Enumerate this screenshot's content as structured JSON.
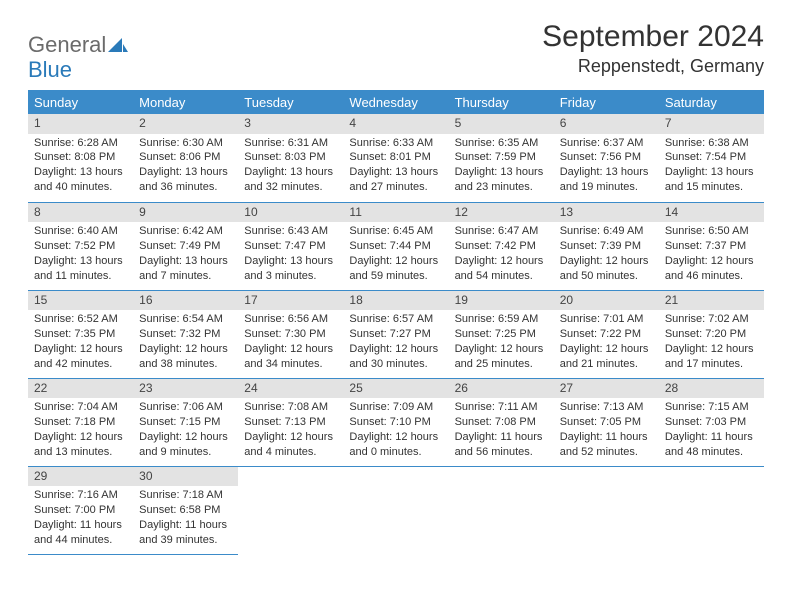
{
  "brand": {
    "word1": "General",
    "word2": "Blue",
    "logo_fill": "#2a7ab9"
  },
  "header": {
    "title": "September 2024",
    "location": "Reppenstedt, Germany"
  },
  "styling": {
    "header_bg": "#3b8bc9",
    "header_text": "#ffffff",
    "daynum_bg": "#e3e3e3",
    "body_text": "#333333",
    "cell_border": "#3b8bc9",
    "page_bg": "#ffffff",
    "title_fontsize": 30,
    "location_fontsize": 18,
    "dayheader_fontsize": 13,
    "cell_fontsize": 11
  },
  "daysOfWeek": [
    "Sunday",
    "Monday",
    "Tuesday",
    "Wednesday",
    "Thursday",
    "Friday",
    "Saturday"
  ],
  "weeks": [
    [
      {
        "n": "1",
        "sr": "Sunrise: 6:28 AM",
        "ss": "Sunset: 8:08 PM",
        "d1": "Daylight: 13 hours",
        "d2": "and 40 minutes."
      },
      {
        "n": "2",
        "sr": "Sunrise: 6:30 AM",
        "ss": "Sunset: 8:06 PM",
        "d1": "Daylight: 13 hours",
        "d2": "and 36 minutes."
      },
      {
        "n": "3",
        "sr": "Sunrise: 6:31 AM",
        "ss": "Sunset: 8:03 PM",
        "d1": "Daylight: 13 hours",
        "d2": "and 32 minutes."
      },
      {
        "n": "4",
        "sr": "Sunrise: 6:33 AM",
        "ss": "Sunset: 8:01 PM",
        "d1": "Daylight: 13 hours",
        "d2": "and 27 minutes."
      },
      {
        "n": "5",
        "sr": "Sunrise: 6:35 AM",
        "ss": "Sunset: 7:59 PM",
        "d1": "Daylight: 13 hours",
        "d2": "and 23 minutes."
      },
      {
        "n": "6",
        "sr": "Sunrise: 6:37 AM",
        "ss": "Sunset: 7:56 PM",
        "d1": "Daylight: 13 hours",
        "d2": "and 19 minutes."
      },
      {
        "n": "7",
        "sr": "Sunrise: 6:38 AM",
        "ss": "Sunset: 7:54 PM",
        "d1": "Daylight: 13 hours",
        "d2": "and 15 minutes."
      }
    ],
    [
      {
        "n": "8",
        "sr": "Sunrise: 6:40 AM",
        "ss": "Sunset: 7:52 PM",
        "d1": "Daylight: 13 hours",
        "d2": "and 11 minutes."
      },
      {
        "n": "9",
        "sr": "Sunrise: 6:42 AM",
        "ss": "Sunset: 7:49 PM",
        "d1": "Daylight: 13 hours",
        "d2": "and 7 minutes."
      },
      {
        "n": "10",
        "sr": "Sunrise: 6:43 AM",
        "ss": "Sunset: 7:47 PM",
        "d1": "Daylight: 13 hours",
        "d2": "and 3 minutes."
      },
      {
        "n": "11",
        "sr": "Sunrise: 6:45 AM",
        "ss": "Sunset: 7:44 PM",
        "d1": "Daylight: 12 hours",
        "d2": "and 59 minutes."
      },
      {
        "n": "12",
        "sr": "Sunrise: 6:47 AM",
        "ss": "Sunset: 7:42 PM",
        "d1": "Daylight: 12 hours",
        "d2": "and 54 minutes."
      },
      {
        "n": "13",
        "sr": "Sunrise: 6:49 AM",
        "ss": "Sunset: 7:39 PM",
        "d1": "Daylight: 12 hours",
        "d2": "and 50 minutes."
      },
      {
        "n": "14",
        "sr": "Sunrise: 6:50 AM",
        "ss": "Sunset: 7:37 PM",
        "d1": "Daylight: 12 hours",
        "d2": "and 46 minutes."
      }
    ],
    [
      {
        "n": "15",
        "sr": "Sunrise: 6:52 AM",
        "ss": "Sunset: 7:35 PM",
        "d1": "Daylight: 12 hours",
        "d2": "and 42 minutes."
      },
      {
        "n": "16",
        "sr": "Sunrise: 6:54 AM",
        "ss": "Sunset: 7:32 PM",
        "d1": "Daylight: 12 hours",
        "d2": "and 38 minutes."
      },
      {
        "n": "17",
        "sr": "Sunrise: 6:56 AM",
        "ss": "Sunset: 7:30 PM",
        "d1": "Daylight: 12 hours",
        "d2": "and 34 minutes."
      },
      {
        "n": "18",
        "sr": "Sunrise: 6:57 AM",
        "ss": "Sunset: 7:27 PM",
        "d1": "Daylight: 12 hours",
        "d2": "and 30 minutes."
      },
      {
        "n": "19",
        "sr": "Sunrise: 6:59 AM",
        "ss": "Sunset: 7:25 PM",
        "d1": "Daylight: 12 hours",
        "d2": "and 25 minutes."
      },
      {
        "n": "20",
        "sr": "Sunrise: 7:01 AM",
        "ss": "Sunset: 7:22 PM",
        "d1": "Daylight: 12 hours",
        "d2": "and 21 minutes."
      },
      {
        "n": "21",
        "sr": "Sunrise: 7:02 AM",
        "ss": "Sunset: 7:20 PM",
        "d1": "Daylight: 12 hours",
        "d2": "and 17 minutes."
      }
    ],
    [
      {
        "n": "22",
        "sr": "Sunrise: 7:04 AM",
        "ss": "Sunset: 7:18 PM",
        "d1": "Daylight: 12 hours",
        "d2": "and 13 minutes."
      },
      {
        "n": "23",
        "sr": "Sunrise: 7:06 AM",
        "ss": "Sunset: 7:15 PM",
        "d1": "Daylight: 12 hours",
        "d2": "and 9 minutes."
      },
      {
        "n": "24",
        "sr": "Sunrise: 7:08 AM",
        "ss": "Sunset: 7:13 PM",
        "d1": "Daylight: 12 hours",
        "d2": "and 4 minutes."
      },
      {
        "n": "25",
        "sr": "Sunrise: 7:09 AM",
        "ss": "Sunset: 7:10 PM",
        "d1": "Daylight: 12 hours",
        "d2": "and 0 minutes."
      },
      {
        "n": "26",
        "sr": "Sunrise: 7:11 AM",
        "ss": "Sunset: 7:08 PM",
        "d1": "Daylight: 11 hours",
        "d2": "and 56 minutes."
      },
      {
        "n": "27",
        "sr": "Sunrise: 7:13 AM",
        "ss": "Sunset: 7:05 PM",
        "d1": "Daylight: 11 hours",
        "d2": "and 52 minutes."
      },
      {
        "n": "28",
        "sr": "Sunrise: 7:15 AM",
        "ss": "Sunset: 7:03 PM",
        "d1": "Daylight: 11 hours",
        "d2": "and 48 minutes."
      }
    ],
    [
      {
        "n": "29",
        "sr": "Sunrise: 7:16 AM",
        "ss": "Sunset: 7:00 PM",
        "d1": "Daylight: 11 hours",
        "d2": "and 44 minutes."
      },
      {
        "n": "30",
        "sr": "Sunrise: 7:18 AM",
        "ss": "Sunset: 6:58 PM",
        "d1": "Daylight: 11 hours",
        "d2": "and 39 minutes."
      },
      null,
      null,
      null,
      null,
      null
    ]
  ]
}
